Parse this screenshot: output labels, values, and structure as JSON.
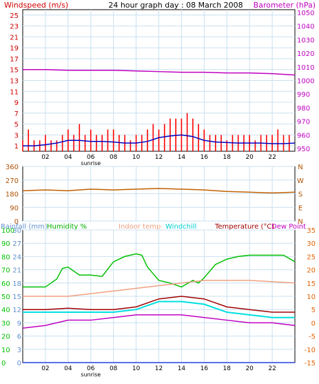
{
  "header": {
    "windspeed_label": "Windspeed (m/s)",
    "title": "24 hour graph day : 08 March 2008",
    "barometer_label": "Barometer (hPa)"
  },
  "colors": {
    "wind_axis": "#d00000",
    "wind_bars": "#ff0000",
    "wind_avg": "#0000c0",
    "barometer": "#c000c0",
    "direction": "#c06000",
    "direction_axis": "#b05000",
    "rain": "#2040e0",
    "humidity": "#00c000",
    "indoor": "#f0a080",
    "windchill": "#00e0e0",
    "temperature": "#a00000",
    "dewpoint": "#c000c0",
    "temp_axis": "#e06000",
    "grid": "#c8e0f0"
  },
  "chart_data": [
    {
      "type": "bar",
      "panel": "wind",
      "title": "24 hour graph day : 08 March 2008",
      "ylabel_left": "Windspeed (m/s)",
      "ylabel_right": "Barometer (hPa)",
      "left_ticks": [
        "25",
        "23",
        "21",
        "19",
        "17",
        "15",
        "13",
        "11",
        "9",
        "7",
        "5",
        "3",
        "1"
      ],
      "left_ylim": [
        0,
        26
      ],
      "right_ticks": [
        "1050",
        "1040",
        "1030",
        "1020",
        "1010",
        "1000",
        "990",
        "980",
        "970",
        "960",
        "950"
      ],
      "right_ylim": [
        948,
        1052
      ],
      "x_ticks": [
        "02",
        "04",
        "06",
        "08",
        "10",
        "12",
        "14",
        "16",
        "18",
        "20",
        "22"
      ],
      "xlim": [
        0,
        24
      ],
      "x_annotation": "sunrise",
      "series": [
        {
          "name": "Windspeed (m/s)",
          "kind": "gust",
          "x": [
            0,
            0.5,
            1,
            1.5,
            2,
            2.5,
            3,
            3.5,
            4,
            4.5,
            5,
            5.5,
            6,
            6.5,
            7,
            7.5,
            8,
            8.5,
            9,
            9.5,
            10,
            10.5,
            11,
            11.5,
            12,
            12.5,
            13,
            13.5,
            14,
            14.5,
            15,
            15.5,
            16,
            16.5,
            17,
            17.5,
            18,
            18.5,
            19,
            19.5,
            20,
            20.5,
            21,
            21.5,
            22,
            22.5,
            23,
            23.5
          ],
          "values": [
            2,
            4,
            2,
            2,
            3,
            2,
            2,
            3,
            4,
            3,
            5,
            3,
            4,
            3,
            3,
            4,
            4,
            3,
            3,
            2,
            3,
            3,
            4,
            5,
            4,
            5,
            6,
            6,
            6,
            7,
            6,
            5,
            4,
            3,
            3,
            3,
            2,
            3,
            3,
            3,
            3,
            2,
            3,
            3,
            3,
            4,
            3,
            3
          ]
        },
        {
          "name": "average",
          "kind": "avg",
          "x": [
            0,
            1,
            2,
            3,
            4,
            5,
            6,
            7,
            8,
            9,
            10,
            11,
            12,
            13,
            14,
            15,
            16,
            17,
            18,
            19,
            20,
            21,
            22,
            23,
            24
          ],
          "values": [
            1,
            1,
            1.2,
            1.5,
            2,
            2,
            1.8,
            1.8,
            1.7,
            1.5,
            1.5,
            1.8,
            2.5,
            2.8,
            3,
            2.7,
            2,
            1.7,
            1.6,
            1.5,
            1.5,
            1.5,
            1.4,
            1.4,
            1.5
          ]
        },
        {
          "name": "Barometer (hPa)",
          "kind": "line",
          "x": [
            0,
            2,
            4,
            6,
            8,
            10,
            12,
            14,
            16,
            18,
            20,
            22,
            24
          ],
          "values": [
            1008,
            1008,
            1007.5,
            1007.5,
            1007.5,
            1007,
            1006.5,
            1006,
            1006,
            1005.5,
            1005.5,
            1005,
            1004
          ]
        }
      ]
    },
    {
      "type": "line",
      "panel": "direction",
      "left_ticks": [
        "360",
        "270",
        "180",
        "90",
        "0"
      ],
      "ylim": [
        0,
        360
      ],
      "right_ticks": [
        "N",
        "W",
        "S",
        "E",
        "N"
      ],
      "series": [
        {
          "name": "Wind direction",
          "x": [
            0,
            2,
            4,
            6,
            8,
            10,
            12,
            14,
            16,
            18,
            20,
            22,
            24
          ],
          "values": [
            200,
            205,
            200,
            210,
            205,
            210,
            215,
            210,
            205,
            195,
            190,
            185,
            190
          ]
        }
      ]
    },
    {
      "type": "line",
      "panel": "temperature",
      "labels": {
        "rainfall": "Rainfall (mm)",
        "humidity": "Humidity %",
        "indoor": "Indoor temp",
        "windchill": "Windchill",
        "temperature": "Temperature (°C)",
        "dewpoint": "Dew Point"
      },
      "humidity_ticks": [
        "100",
        "90",
        "80",
        "70",
        "60",
        "50",
        "40",
        "30",
        "20",
        "10",
        "0"
      ],
      "humidity_ylim": [
        0,
        100
      ],
      "rain_ticks": [
        "30",
        "27",
        "24",
        "21",
        "18",
        "15",
        "12",
        "9",
        "6",
        "3",
        "0"
      ],
      "rain_ylim": [
        0,
        30
      ],
      "temp_ticks": [
        "35",
        "30",
        "25",
        "20",
        "15",
        "10",
        "5",
        "0",
        "-5",
        "-10",
        "-15"
      ],
      "temp_ylim": [
        -15,
        35
      ],
      "x_ticks": [
        "02",
        "04",
        "06",
        "08",
        "10",
        "12",
        "14",
        "16",
        "18",
        "20",
        "22"
      ],
      "x_annotation": "sunrise",
      "series": [
        {
          "name": "Humidity %",
          "axis": "humidity",
          "x": [
            0,
            2,
            3,
            3.5,
            4,
            5,
            6,
            7,
            8,
            9,
            10,
            10.5,
            11,
            12,
            13,
            14,
            15,
            15.5,
            16,
            17,
            18,
            19,
            20,
            21,
            22,
            23,
            24
          ],
          "values": [
            57,
            57,
            63,
            71,
            72,
            66,
            66,
            65,
            76,
            80,
            82,
            81,
            72,
            62,
            60,
            57,
            62,
            60,
            64,
            74,
            78,
            80,
            81,
            81,
            81,
            81,
            76
          ]
        },
        {
          "name": "Indoor temp",
          "axis": "temp",
          "x": [
            0,
            4,
            8,
            12,
            16,
            20,
            24
          ],
          "values": [
            10,
            10,
            12,
            14,
            16,
            16,
            15
          ]
        },
        {
          "name": "Windchill",
          "axis": "temp",
          "x": [
            0,
            2,
            4,
            6,
            8,
            10,
            12,
            14,
            16,
            18,
            20,
            22,
            24
          ],
          "values": [
            4,
            4,
            4,
            4,
            4,
            5,
            8,
            8,
            7,
            4,
            3,
            2,
            2
          ]
        },
        {
          "name": "Temperature (°C)",
          "axis": "temp",
          "x": [
            0,
            2,
            4,
            6,
            8,
            10,
            12,
            14,
            16,
            18,
            20,
            22,
            24
          ],
          "values": [
            5,
            5,
            5.5,
            5,
            5,
            6,
            9,
            10,
            9,
            6,
            5,
            4,
            4
          ]
        },
        {
          "name": "Dew Point",
          "axis": "temp",
          "x": [
            0,
            2,
            4,
            6,
            8,
            10,
            12,
            14,
            16,
            18,
            20,
            22,
            24
          ],
          "values": [
            -2,
            -1,
            1,
            1,
            2,
            3,
            3,
            3,
            2,
            1,
            0,
            0,
            -1
          ]
        },
        {
          "name": "Rainfall (mm)",
          "axis": "rain",
          "x": [
            0,
            24
          ],
          "values": [
            0,
            0
          ]
        }
      ]
    }
  ]
}
